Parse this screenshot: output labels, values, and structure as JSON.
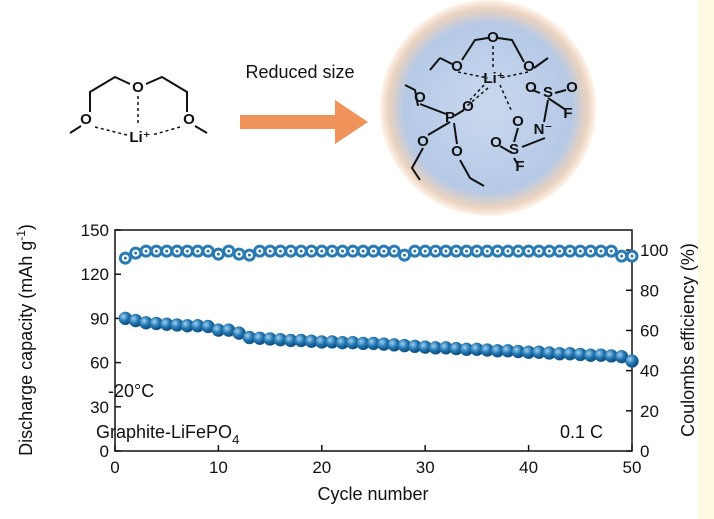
{
  "diagram": {
    "arrow_label": "Reduced size",
    "left_atoms": [
      "O",
      "O",
      "O",
      "Li⁺"
    ],
    "right_atoms": [
      "O",
      "O",
      "O",
      "Li⁺",
      "O",
      "P",
      "O",
      "O",
      "O",
      "S",
      "O",
      "O",
      "N⁻",
      "S",
      "O",
      "O",
      "F",
      "F"
    ]
  },
  "chart_data": {
    "type": "scatter",
    "xlabel": "Cycle number",
    "ylabel": {
      "text": "Discharge capacity (mAh g",
      "sup": "-1",
      "end": ")"
    },
    "y2label": "Coulombs efficiency (%)",
    "annotations": {
      "temperature": "-20°C",
      "cell": {
        "text": "Graphite-LiFePO",
        "sub": "4"
      },
      "rate": "0.1 C"
    },
    "x": [
      1,
      2,
      3,
      4,
      5,
      6,
      7,
      8,
      9,
      10,
      11,
      12,
      13,
      14,
      15,
      16,
      17,
      18,
      19,
      20,
      21,
      22,
      23,
      24,
      25,
      26,
      27,
      28,
      29,
      30,
      31,
      32,
      33,
      34,
      35,
      36,
      37,
      38,
      39,
      40,
      41,
      42,
      43,
      44,
      45,
      46,
      47,
      48,
      49,
      50
    ],
    "series": [
      {
        "color": "#1f6fa8",
        "marker": "filled",
        "values": [
          90,
          88.5,
          87,
          86.5,
          86,
          85.5,
          85,
          85,
          84.5,
          82,
          82,
          80,
          77,
          76.5,
          76,
          75.5,
          75,
          75,
          74.5,
          74,
          74,
          73.5,
          73.5,
          73,
          73,
          72.5,
          72,
          71.5,
          71,
          70.5,
          70,
          70,
          69.5,
          69,
          69,
          68.5,
          68,
          68,
          67.5,
          67,
          67,
          66.5,
          66,
          66,
          65.5,
          65,
          65,
          64.5,
          64,
          61
        ]
      },
      {
        "color": "#2a7ab3",
        "marker": "open",
        "axis": "y2",
        "values": [
          96,
          98.5,
          99.5,
          99.5,
          99.5,
          99.5,
          99.5,
          99.5,
          99.5,
          98,
          99.5,
          98,
          97.5,
          99.5,
          99.5,
          99.5,
          99.5,
          99.5,
          99.5,
          99.5,
          99.5,
          99.5,
          99.5,
          99.5,
          99.5,
          99.5,
          99.5,
          97.5,
          99.5,
          99.5,
          99.5,
          99.5,
          99.5,
          99.5,
          99.5,
          99.5,
          99.5,
          99.5,
          99.5,
          99.5,
          99.5,
          99.5,
          99.5,
          99.5,
          99.5,
          99.5,
          99.5,
          99.5,
          97,
          97
        ]
      }
    ],
    "xlim": [
      0,
      50
    ],
    "xticks": [
      0,
      10,
      20,
      30,
      40,
      50
    ],
    "ylim": [
      0,
      150
    ],
    "yticks": [
      0,
      30,
      60,
      90,
      120,
      150
    ],
    "y2lim": [
      0,
      110
    ],
    "y2ticks": [
      0,
      20,
      40,
      60,
      80,
      100
    ]
  }
}
